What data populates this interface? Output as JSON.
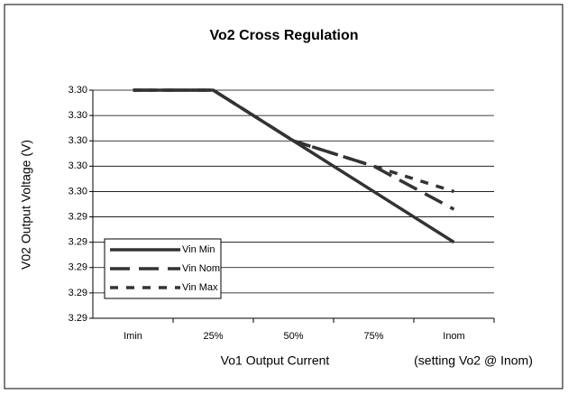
{
  "chart_data": {
    "type": "line",
    "title": "Vo2 Cross Regulation",
    "y_label": "V02 Output Voltage (V)",
    "x_label": "Vo1 Output Current",
    "x_note": "(setting Vo2 @ Inom)",
    "categories": [
      "Imin",
      "25%",
      "50%",
      "75%",
      "Inom"
    ],
    "ylim": [
      3.2905,
      3.2995
    ],
    "yticks": [
      {
        "value": 3.2905,
        "label": "3.29"
      },
      {
        "value": 3.2915,
        "label": "3.29"
      },
      {
        "value": 3.2925,
        "label": "3.29"
      },
      {
        "value": 3.2935,
        "label": "3.29"
      },
      {
        "value": 3.2945,
        "label": "3.29"
      },
      {
        "value": 3.2955,
        "label": "3.30"
      },
      {
        "value": 3.2965,
        "label": "3.30"
      },
      {
        "value": 3.2975,
        "label": "3.30"
      },
      {
        "value": 3.2985,
        "label": "3.30"
      },
      {
        "value": 3.2995,
        "label": "3.30"
      }
    ],
    "grid": true,
    "legend": "lower-left",
    "series": [
      {
        "name": "Vin Min",
        "color": "#333333",
        "dash": "solid",
        "values": [
          3.2995,
          3.2995,
          3.2975,
          3.2955,
          3.2935
        ]
      },
      {
        "name": "Vin Nom",
        "color": "#333333",
        "dash": "long",
        "values": [
          3.2995,
          3.2995,
          3.2975,
          3.2965,
          3.2948
        ]
      },
      {
        "name": "Vin Max",
        "color": "#333333",
        "dash": "short",
        "values": [
          3.2995,
          3.2995,
          3.2975,
          3.2965,
          3.2955
        ]
      }
    ]
  }
}
